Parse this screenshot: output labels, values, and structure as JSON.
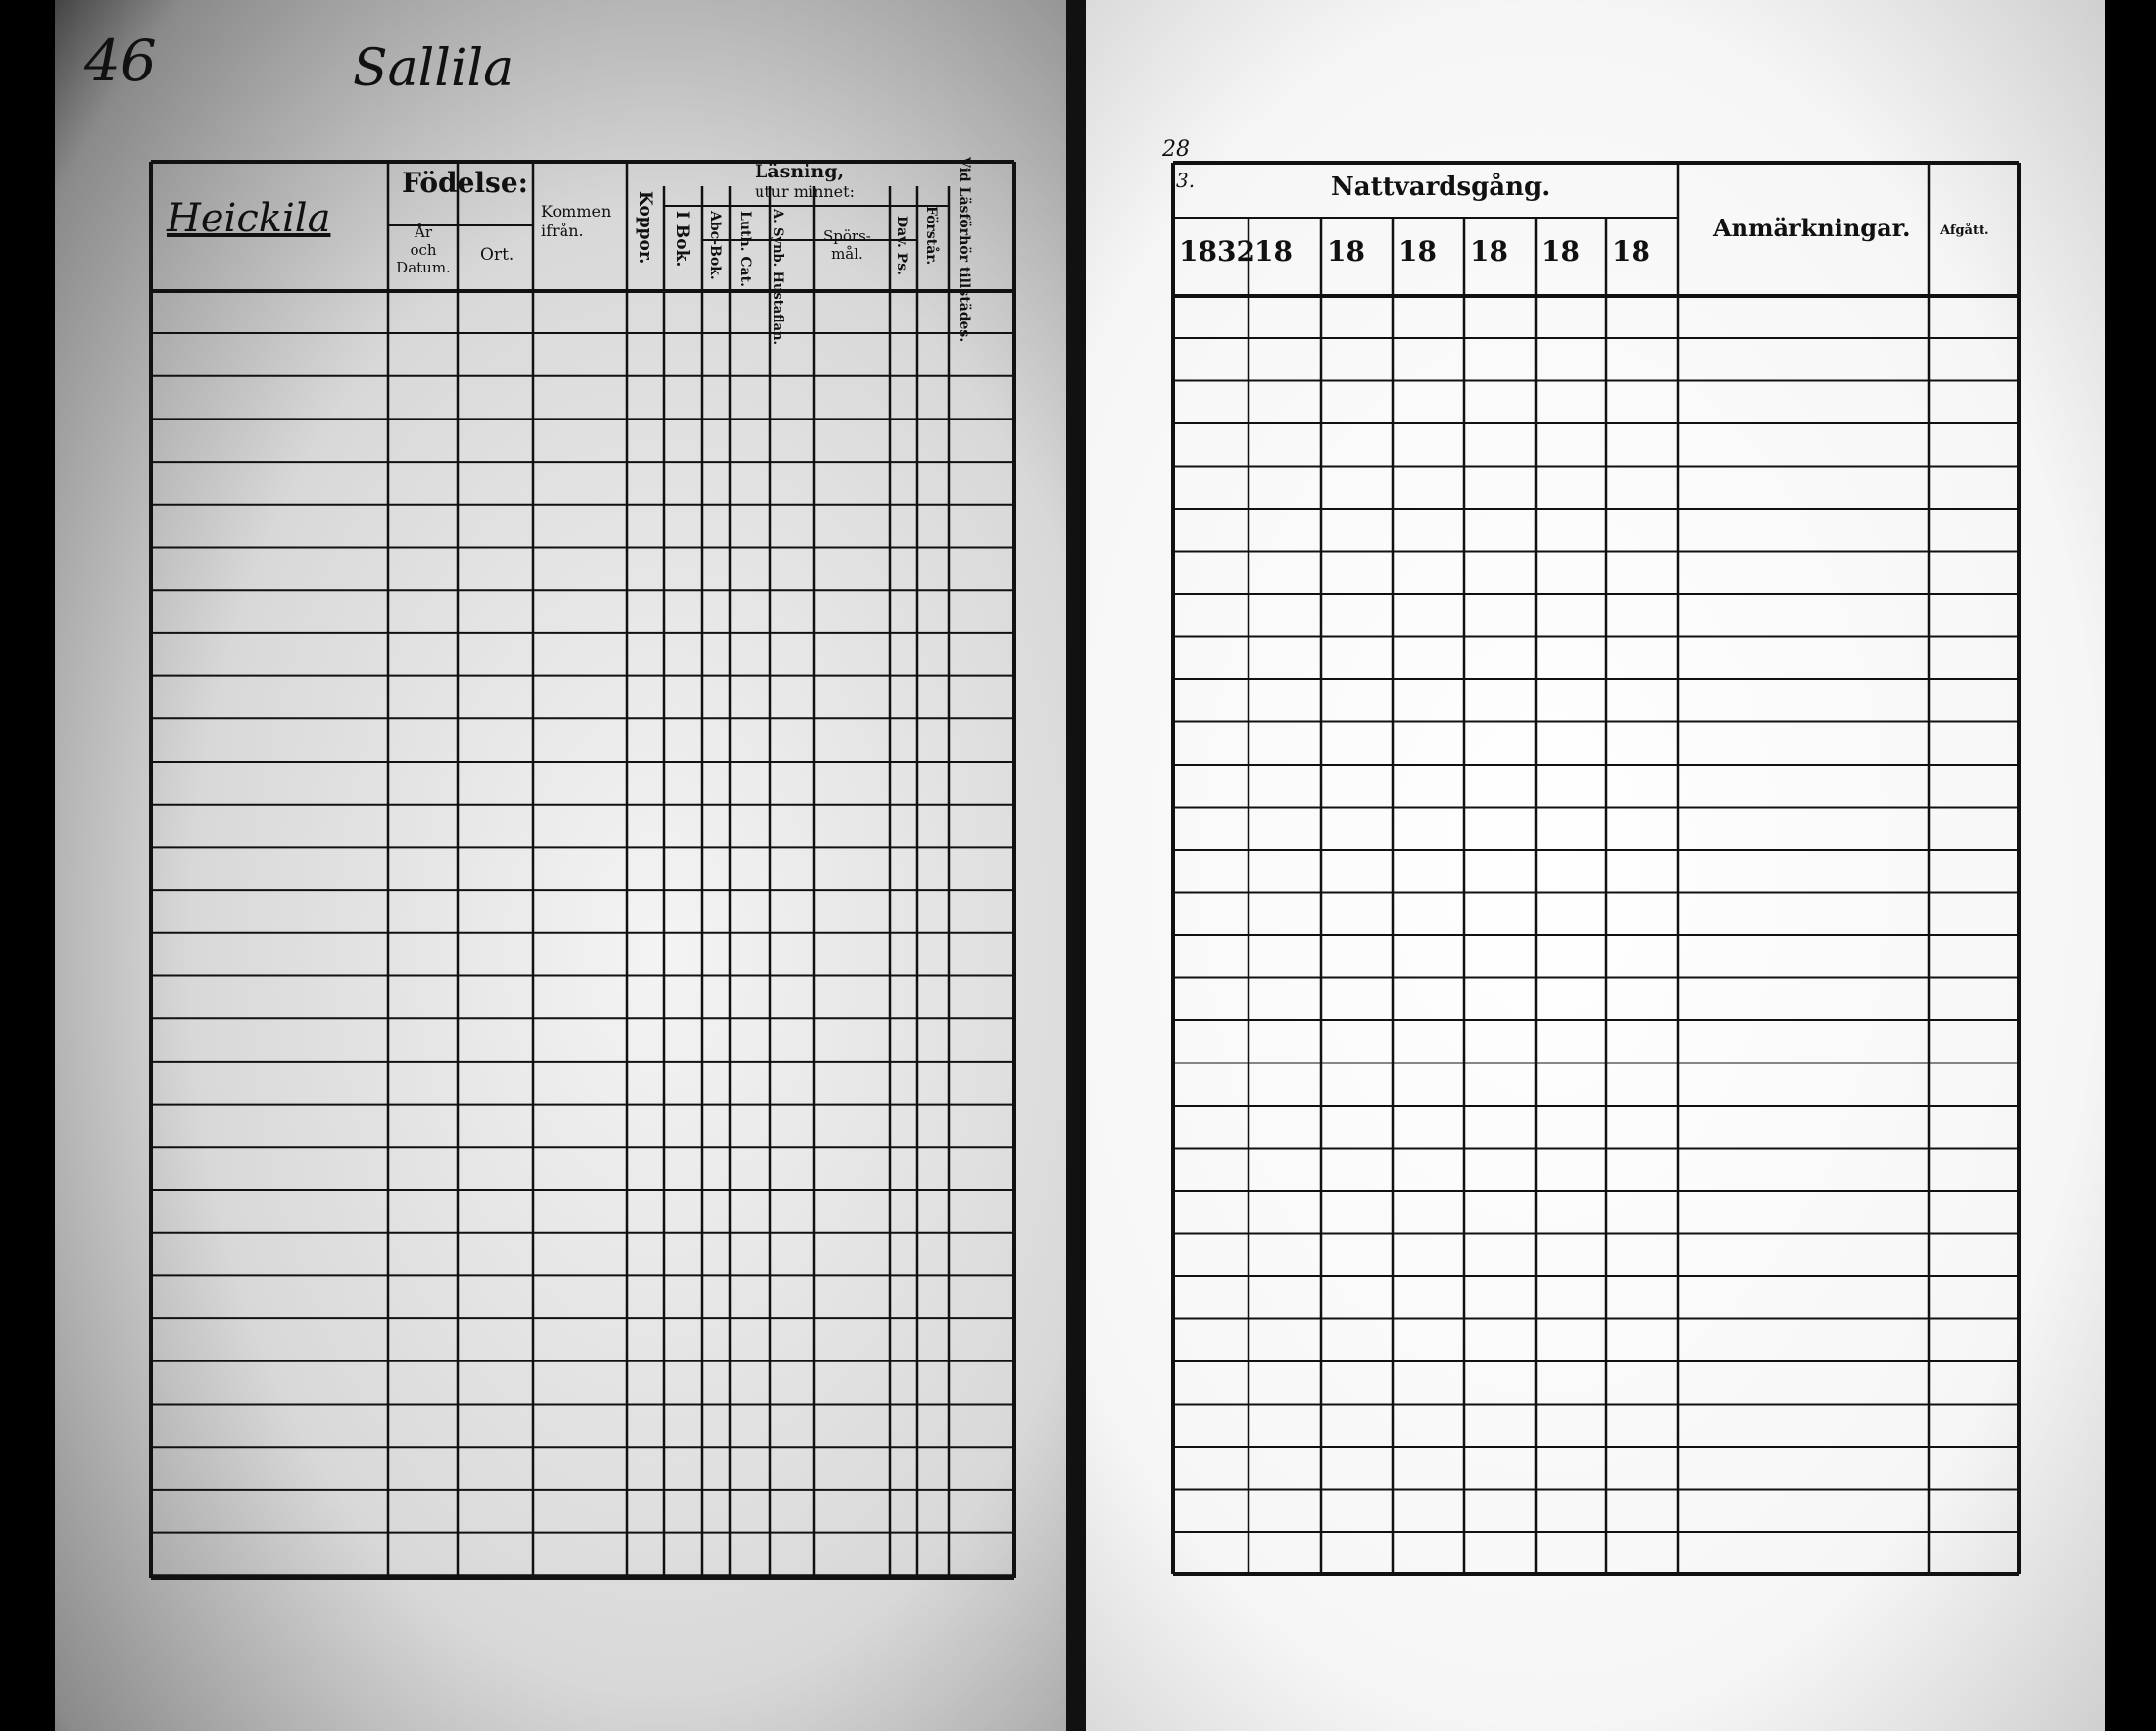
{
  "left_page": {
    "page_number": "46",
    "village": "Sallila",
    "farm": "Heickila",
    "headers": {
      "fodelse": "Födelse:",
      "ar_och_datum": [
        "År",
        "och",
        "Datum."
      ],
      "ort": "Ort.",
      "kommen_ifran": [
        "Kommen",
        "ifrån."
      ],
      "koppor": "Koppor.",
      "lasning": "Läsning,",
      "i_bok": "I Bok.",
      "utur_minnet": "utur minnet:",
      "abc_bok": "Abc-Bok.",
      "luth_cat": "Luth. Cat.",
      "synb_hustaflan": "A. Synb. Hustaflan.",
      "sporsmal": [
        "Spörs-",
        "mål."
      ],
      "dav_ps": "Dav. Ps.",
      "forstaar": "Förstår.",
      "vid_lasforhor": "Vid Läsförhör tillstädes."
    }
  },
  "right_page": {
    "corner_note": "28",
    "column_note": "3.",
    "headers": {
      "nattvardsgang": "Nattvardsgång.",
      "years": [
        "1832",
        "18",
        "18",
        "18",
        "18",
        "18",
        "18"
      ],
      "anmarkningar": "Anmärkningar.",
      "afgatt": "Afgått."
    }
  }
}
